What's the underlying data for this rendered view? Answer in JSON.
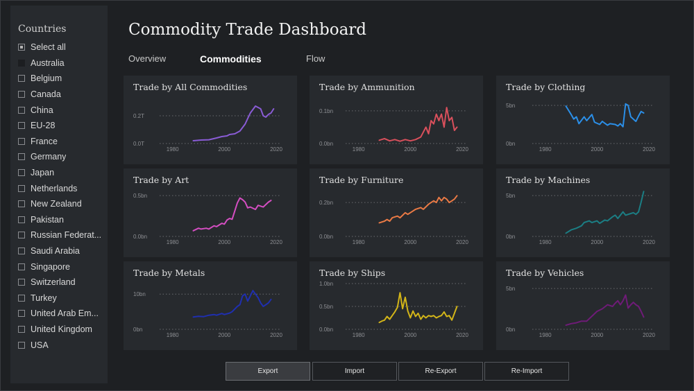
{
  "sidebar": {
    "title": "Countries",
    "items": [
      {
        "label": "Select all",
        "state": "checked"
      },
      {
        "label": "Australia",
        "state": "partial"
      },
      {
        "label": "Belgium",
        "state": "unchecked"
      },
      {
        "label": "Canada",
        "state": "unchecked"
      },
      {
        "label": "China",
        "state": "unchecked"
      },
      {
        "label": "EU-28",
        "state": "unchecked"
      },
      {
        "label": "France",
        "state": "unchecked"
      },
      {
        "label": "Germany",
        "state": "unchecked"
      },
      {
        "label": "Japan",
        "state": "unchecked"
      },
      {
        "label": "Netherlands",
        "state": "unchecked"
      },
      {
        "label": "New Zealand",
        "state": "unchecked"
      },
      {
        "label": "Pakistan",
        "state": "unchecked"
      },
      {
        "label": "Russian Federat...",
        "state": "unchecked"
      },
      {
        "label": "Saudi Arabia",
        "state": "unchecked"
      },
      {
        "label": "Singapore",
        "state": "unchecked"
      },
      {
        "label": "Switzerland",
        "state": "unchecked"
      },
      {
        "label": "Turkey",
        "state": "unchecked"
      },
      {
        "label": "United Arab Em...",
        "state": "unchecked"
      },
      {
        "label": "United Kingdom",
        "state": "unchecked"
      },
      {
        "label": "USA",
        "state": "unchecked"
      }
    ]
  },
  "header": {
    "title": "Commodity Trade Dashboard",
    "tabs": [
      {
        "label": "Overview",
        "active": false
      },
      {
        "label": "Commodities",
        "active": true
      },
      {
        "label": "Flow",
        "active": false
      }
    ]
  },
  "buttons": [
    {
      "label": "Export",
      "active": true
    },
    {
      "label": "Import",
      "active": false
    },
    {
      "label": "Re-Export",
      "active": false
    },
    {
      "label": "Re-Import",
      "active": false
    }
  ],
  "chart_data": [
    {
      "type": "line",
      "title": "Trade by All Commodities",
      "color": "#8a5cd6",
      "xticks": [
        "1980",
        "2000",
        "2020"
      ],
      "yticks": [
        0,
        0.2
      ],
      "ytick_labels": [
        "0.0T",
        "0.2T"
      ],
      "ylim": [
        0,
        0.33
      ],
      "x": [
        1988,
        1991,
        1994,
        1997,
        1999,
        2001,
        2002,
        2004,
        2006,
        2008,
        2009,
        2010,
        2012,
        2013,
        2014,
        2015,
        2016,
        2017,
        2018,
        2019
      ],
      "values": [
        0.02,
        0.025,
        0.027,
        0.04,
        0.05,
        0.055,
        0.065,
        0.07,
        0.09,
        0.14,
        0.18,
        0.22,
        0.27,
        0.26,
        0.25,
        0.2,
        0.19,
        0.21,
        0.22,
        0.25
      ]
    },
    {
      "type": "line",
      "title": "Trade by Ammunition",
      "color": "#d9505c",
      "xticks": [
        "1980",
        "2000",
        "2020"
      ],
      "yticks": [
        0,
        0.1
      ],
      "ytick_labels": [
        "0.0bn",
        "0.1bn"
      ],
      "ylim": [
        0,
        0.14
      ],
      "x": [
        1988,
        1990,
        1992,
        1994,
        1996,
        1998,
        2000,
        2002,
        2004,
        2006,
        2007,
        2008,
        2009,
        2010,
        2011,
        2012,
        2013,
        2014,
        2015,
        2016,
        2017,
        2018
      ],
      "values": [
        0.01,
        0.015,
        0.008,
        0.012,
        0.007,
        0.012,
        0.008,
        0.012,
        0.02,
        0.05,
        0.03,
        0.07,
        0.06,
        0.09,
        0.07,
        0.09,
        0.05,
        0.11,
        0.07,
        0.08,
        0.04,
        0.05
      ]
    },
    {
      "type": "line",
      "title": "Trade by Clothing",
      "color": "#2b8fe8",
      "xticks": [
        "1980",
        "2000",
        "2020"
      ],
      "yticks": [
        0,
        5
      ],
      "ytick_labels": [
        "0bn",
        "5bn"
      ],
      "ylim": [
        0,
        6
      ],
      "x": [
        1988,
        1990,
        1991,
        1992,
        1993,
        1995,
        1996,
        1998,
        1999,
        2001,
        2002,
        2004,
        2005,
        2007,
        2008,
        2009,
        2010,
        2011,
        2012,
        2013,
        2015,
        2016,
        2017,
        2018
      ],
      "values": [
        4.9,
        3.8,
        3.2,
        3.5,
        2.6,
        3.5,
        3.0,
        3.8,
        2.8,
        2.5,
        2.9,
        2.4,
        2.6,
        2.5,
        2.3,
        2.6,
        2.2,
        5.2,
        5.0,
        3.5,
        2.9,
        3.6,
        4.2,
        4.0
      ]
    },
    {
      "type": "line",
      "title": "Trade by Art",
      "color": "#d54ec2",
      "xticks": [
        "1980",
        "2000",
        "2020"
      ],
      "yticks": [
        0,
        0.5
      ],
      "ytick_labels": [
        "0.0bn",
        "0.5bn"
      ],
      "ylim": [
        0,
        0.56
      ],
      "x": [
        1988,
        1990,
        1991,
        1993,
        1994,
        1996,
        1997,
        1999,
        2000,
        2001,
        2002,
        2003,
        2005,
        2006,
        2007,
        2008,
        2009,
        2010,
        2012,
        2013,
        2015,
        2016,
        2017,
        2018
      ],
      "values": [
        0.07,
        0.1,
        0.09,
        0.1,
        0.09,
        0.13,
        0.12,
        0.16,
        0.15,
        0.2,
        0.22,
        0.21,
        0.41,
        0.47,
        0.45,
        0.42,
        0.35,
        0.36,
        0.33,
        0.38,
        0.36,
        0.39,
        0.42,
        0.44
      ]
    },
    {
      "type": "line",
      "title": "Trade by Furniture",
      "color": "#ea7a45",
      "xticks": [
        "1980",
        "2000",
        "2020"
      ],
      "yticks": [
        0,
        0.2
      ],
      "ytick_labels": [
        "0.0bn",
        "0.2bn"
      ],
      "ylim": [
        0,
        0.27
      ],
      "x": [
        1988,
        1990,
        1991,
        1992,
        1993,
        1995,
        1996,
        1998,
        1999,
        2001,
        2002,
        2004,
        2005,
        2007,
        2008,
        2009,
        2010,
        2011,
        2012,
        2013,
        2014,
        2015,
        2016,
        2017,
        2018
      ],
      "values": [
        0.08,
        0.09,
        0.1,
        0.09,
        0.11,
        0.12,
        0.11,
        0.14,
        0.13,
        0.15,
        0.16,
        0.17,
        0.16,
        0.19,
        0.2,
        0.21,
        0.2,
        0.23,
        0.21,
        0.23,
        0.22,
        0.2,
        0.21,
        0.22,
        0.24
      ]
    },
    {
      "type": "line",
      "title": "Trade by Machines",
      "color": "#1b7e84",
      "xticks": [
        "1980",
        "2000",
        "2020"
      ],
      "yticks": [
        0,
        5
      ],
      "ytick_labels": [
        "0bn",
        "5bn"
      ],
      "ylim": [
        0,
        5.6
      ],
      "x": [
        1988,
        1990,
        1992,
        1994,
        1995,
        1997,
        1998,
        2000,
        2001,
        2003,
        2004,
        2006,
        2007,
        2008,
        2010,
        2011,
        2013,
        2014,
        2015,
        2016,
        2017,
        2018
      ],
      "values": [
        0.4,
        0.8,
        1.0,
        1.3,
        1.7,
        1.9,
        1.7,
        1.9,
        1.6,
        2.0,
        1.9,
        2.4,
        2.6,
        2.2,
        3.0,
        2.6,
        2.8,
        2.9,
        2.7,
        3.0,
        4.2,
        5.5
      ]
    },
    {
      "type": "line",
      "title": "Trade by Metals",
      "color": "#1f2fb0",
      "xticks": [
        "1980",
        "2000",
        "2020"
      ],
      "yticks": [
        0,
        10
      ],
      "ytick_labels": [
        "0bn",
        "10bn"
      ],
      "ylim": [
        0,
        13
      ],
      "x": [
        1988,
        1990,
        1992,
        1994,
        1996,
        1997,
        1999,
        2000,
        2002,
        2003,
        2005,
        2006,
        2007,
        2008,
        2009,
        2010,
        2011,
        2012,
        2013,
        2014,
        2015,
        2016,
        2017,
        2018
      ],
      "values": [
        3.5,
        3.7,
        3.6,
        4.0,
        4.2,
        4.0,
        4.5,
        4.2,
        4.6,
        5.0,
        6.5,
        7.0,
        9.5,
        10.0,
        8.0,
        9.5,
        11.0,
        10.0,
        9.0,
        7.5,
        6.5,
        7.0,
        7.5,
        8.5
      ]
    },
    {
      "type": "line",
      "title": "Trade by Ships",
      "color": "#d3b519",
      "xticks": [
        "1980",
        "2000",
        "2020"
      ],
      "yticks": [
        0,
        0.5,
        1.0
      ],
      "ytick_labels": [
        "0.0bn",
        "0.5bn",
        "1.0bn"
      ],
      "ylim": [
        0,
        1.0
      ],
      "x": [
        1988,
        1989,
        1990,
        1991,
        1992,
        1993,
        1994,
        1995,
        1996,
        1997,
        1998,
        1999,
        2000,
        2001,
        2002,
        2003,
        2004,
        2005,
        2006,
        2007,
        2008,
        2009,
        2010,
        2011,
        2012,
        2013,
        2014,
        2015,
        2016,
        2017,
        2018
      ],
      "values": [
        0.15,
        0.18,
        0.2,
        0.28,
        0.22,
        0.3,
        0.38,
        0.48,
        0.8,
        0.45,
        0.7,
        0.4,
        0.25,
        0.4,
        0.28,
        0.35,
        0.22,
        0.3,
        0.25,
        0.3,
        0.28,
        0.3,
        0.25,
        0.28,
        0.3,
        0.38,
        0.28,
        0.3,
        0.2,
        0.35,
        0.5
      ]
    },
    {
      "type": "line",
      "title": "Trade by Vehicles",
      "color": "#6f1b78",
      "xticks": [
        "1980",
        "2000",
        "2020"
      ],
      "yticks": [
        0,
        5
      ],
      "ytick_labels": [
        "0bn",
        "5bn"
      ],
      "ylim": [
        0,
        5.6
      ],
      "x": [
        1988,
        1990,
        1992,
        1994,
        1996,
        1998,
        2000,
        2002,
        2004,
        2006,
        2007,
        2008,
        2009,
        2010,
        2011,
        2012,
        2013,
        2014,
        2015,
        2016,
        2017,
        2018
      ],
      "values": [
        0.5,
        0.7,
        0.8,
        1.0,
        1.0,
        1.6,
        2.2,
        2.5,
        3.0,
        2.8,
        3.2,
        3.5,
        3.0,
        3.5,
        4.2,
        2.6,
        3.0,
        3.3,
        3.0,
        2.8,
        2.2,
        1.5
      ]
    }
  ]
}
